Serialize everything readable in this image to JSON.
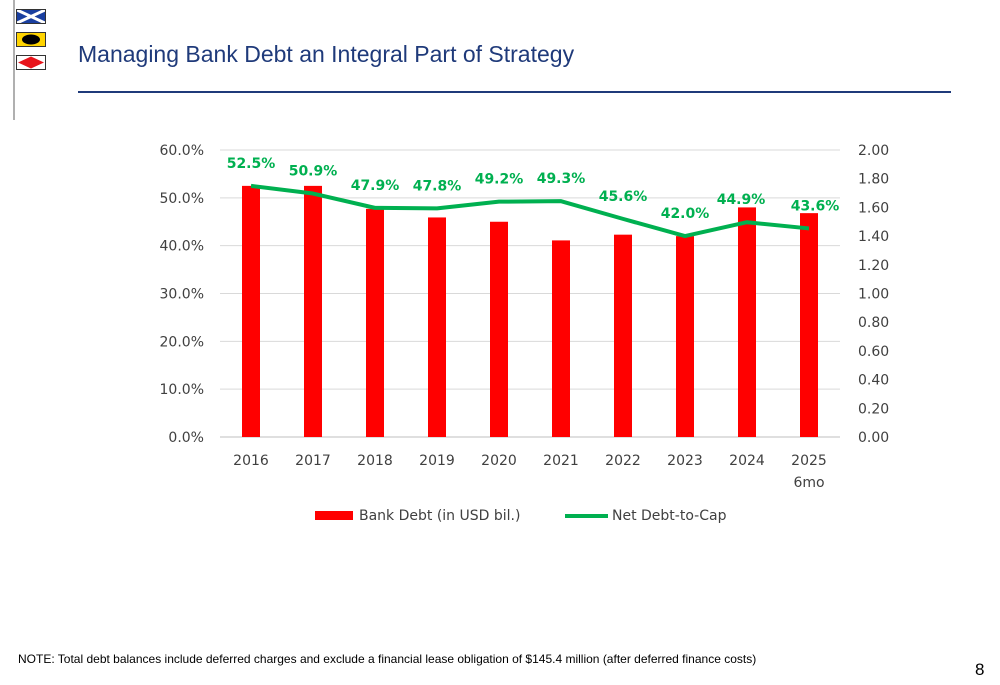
{
  "header": {
    "title": "Managing Bank Debt an Integral Part of Strategy"
  },
  "footer": {
    "note": "NOTE: Total debt balances include deferred charges and exclude a financial lease obligation of $145.4 million (after deferred finance costs)",
    "page_number": "8"
  },
  "colors": {
    "title": "#1f3a7a",
    "bar": "#ff0000",
    "line": "#00b050",
    "grid": "#d9d9d9",
    "axis_text": "#404040"
  },
  "icons": [
    "flag-blue-cross-icon",
    "flag-yellow-black-icon",
    "flag-red-diamond-icon"
  ],
  "chart_data": {
    "type": "bar+line",
    "categories": [
      [
        "2016"
      ],
      [
        "2017"
      ],
      [
        "2018"
      ],
      [
        "2019"
      ],
      [
        "2020"
      ],
      [
        "2021"
      ],
      [
        "2022"
      ],
      [
        "2023"
      ],
      [
        "2024"
      ],
      [
        "2025",
        "6mo"
      ]
    ],
    "left_axis": {
      "ticks": [
        "0.0%",
        "10.0%",
        "20.0%",
        "30.0%",
        "40.0%",
        "50.0%",
        "60.0%"
      ],
      "ylim": [
        0,
        60
      ]
    },
    "right_axis": {
      "ticks": [
        "0.00",
        "0.20",
        "0.40",
        "0.60",
        "0.80",
        "1.00",
        "1.20",
        "1.40",
        "1.60",
        "1.80",
        "2.00"
      ],
      "ylim": [
        0,
        2
      ]
    },
    "series": [
      {
        "name": "Bank Debt (in USD bil.)",
        "type": "bar",
        "axis": "right",
        "values": [
          1.75,
          1.75,
          1.59,
          1.53,
          1.5,
          1.37,
          1.41,
          1.4,
          1.6,
          1.56
        ]
      },
      {
        "name": "Net Debt-to-Cap",
        "type": "line",
        "axis": "left",
        "values": [
          52.5,
          50.9,
          47.9,
          47.8,
          49.2,
          49.3,
          45.6,
          42.0,
          44.9,
          43.6
        ],
        "labels": [
          "52.5%",
          "50.9%",
          "47.9%",
          "47.8%",
          "49.2%",
          "49.3%",
          "45.6%",
          "42.0%",
          "44.9%",
          "43.6%"
        ]
      }
    ],
    "legend_position": "bottom",
    "grid": true
  }
}
